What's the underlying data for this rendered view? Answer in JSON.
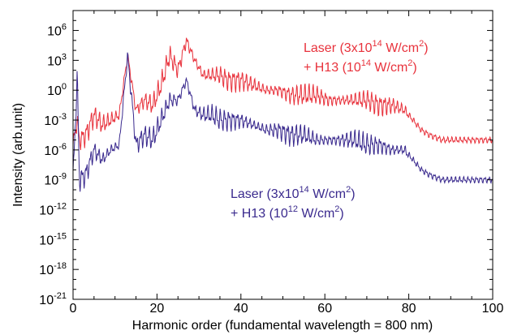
{
  "chart_data": {
    "type": "line",
    "xlabel": "Harmonic order (fundamental wavelength = 800 nm)",
    "ylabel": "Intensity (arb.unit)",
    "xlim": [
      0,
      100
    ],
    "ylim_log10": [
      -21,
      8
    ],
    "yscale": "log",
    "grid": false,
    "x_ticks": [
      0,
      20,
      40,
      60,
      80,
      100
    ],
    "x_tick_labels": [
      "0",
      "20",
      "40",
      "60",
      "80",
      "100"
    ],
    "y_ticks_exp": [
      -21,
      -18,
      -15,
      -12,
      -9,
      -6,
      -3,
      0,
      3,
      6
    ],
    "y_tick_labels": [
      {
        "base": "10",
        "exp": "-21"
      },
      {
        "base": "10",
        "exp": "-18"
      },
      {
        "base": "10",
        "exp": "-15"
      },
      {
        "base": "10",
        "exp": "-12"
      },
      {
        "base": "10",
        "exp": "-9"
      },
      {
        "base": "10",
        "exp": "-6"
      },
      {
        "base": "10",
        "exp": "-3"
      },
      {
        "base": "10",
        "exp": "0"
      },
      {
        "base": "10",
        "exp": "3"
      },
      {
        "base": "10",
        "exp": "6"
      }
    ],
    "series": [
      {
        "name": "Laser (3x10^14 W/cm^2) + H13 (10^14 W/cm^2)",
        "color": "#e8323c",
        "points": [
          [
            0,
            -5.5
          ],
          [
            1,
            -3
          ],
          [
            1.5,
            -5
          ],
          [
            3,
            -4.5
          ],
          [
            5,
            -2.5
          ],
          [
            7,
            -3.5
          ],
          [
            9,
            -3
          ],
          [
            11,
            -2.5
          ],
          [
            13,
            3.5
          ],
          [
            15,
            -2
          ],
          [
            17,
            -1
          ],
          [
            19,
            -1.5
          ],
          [
            21,
            0.5
          ],
          [
            23,
            3.5
          ],
          [
            25,
            2
          ],
          [
            27,
            5
          ],
          [
            29,
            3
          ],
          [
            31,
            1.5
          ],
          [
            33,
            1.5
          ],
          [
            35,
            1.5
          ],
          [
            37,
            1
          ],
          [
            40,
            1
          ],
          [
            43,
            0.5
          ],
          [
            46,
            0
          ],
          [
            49,
            0
          ],
          [
            52,
            -0.5
          ],
          [
            55,
            -0.5
          ],
          [
            58,
            -0.5
          ],
          [
            61,
            -1
          ],
          [
            64,
            -1
          ],
          [
            67,
            -1
          ],
          [
            70,
            -1
          ],
          [
            73,
            -1.5
          ],
          [
            76,
            -1.5
          ],
          [
            79,
            -2
          ],
          [
            81,
            -3
          ],
          [
            83,
            -4
          ],
          [
            85,
            -4.5
          ],
          [
            88,
            -5
          ],
          [
            92,
            -5
          ],
          [
            96,
            -5
          ],
          [
            100,
            -5
          ]
        ],
        "label_lines": [
          [
            {
              "t": "Laser (3x10"
            },
            {
              "t": "14",
              "sup": true
            },
            {
              "t": " W/cm"
            },
            {
              "t": "2",
              "sup": true
            },
            {
              "t": ")"
            }
          ],
          [
            {
              "t": "+ H13 (10"
            },
            {
              "t": "14",
              "sup": true
            },
            {
              "t": " W/cm"
            },
            {
              "t": "2",
              "sup": true
            },
            {
              "t": ")"
            }
          ]
        ]
      },
      {
        "name": "Laser (3x10^14 W/cm^2) + H13 (10^12 W/cm^2)",
        "color": "#3a2a8e",
        "points": [
          [
            0,
            -9
          ],
          [
            1,
            1.5
          ],
          [
            1.5,
            -9
          ],
          [
            3,
            -8.5
          ],
          [
            5,
            -6
          ],
          [
            7,
            -7
          ],
          [
            9,
            -6
          ],
          [
            11,
            -5.5
          ],
          [
            13,
            3.5
          ],
          [
            15,
            -5.5
          ],
          [
            17,
            -4.5
          ],
          [
            19,
            -5
          ],
          [
            21,
            -3
          ],
          [
            23,
            -1
          ],
          [
            25,
            -1
          ],
          [
            27,
            1
          ],
          [
            29,
            -2
          ],
          [
            31,
            -2.5
          ],
          [
            33,
            -2.5
          ],
          [
            35,
            -3
          ],
          [
            37,
            -3
          ],
          [
            40,
            -3
          ],
          [
            43,
            -3.5
          ],
          [
            46,
            -4
          ],
          [
            49,
            -4
          ],
          [
            52,
            -4.5
          ],
          [
            55,
            -4.5
          ],
          [
            58,
            -5
          ],
          [
            61,
            -5
          ],
          [
            64,
            -5
          ],
          [
            67,
            -5
          ],
          [
            70,
            -5.5
          ],
          [
            73,
            -5.5
          ],
          [
            76,
            -6
          ],
          [
            79,
            -6
          ],
          [
            81,
            -7
          ],
          [
            83,
            -8
          ],
          [
            85,
            -8.5
          ],
          [
            88,
            -9
          ],
          [
            92,
            -9
          ],
          [
            96,
            -9
          ],
          [
            100,
            -9
          ]
        ],
        "label_lines": [
          [
            {
              "t": "Laser (3x10"
            },
            {
              "t": "14",
              "sup": true
            },
            {
              "t": " W/cm"
            },
            {
              "t": "2",
              "sup": true
            },
            {
              "t": ")"
            }
          ],
          [
            {
              "t": "+ H13 (10"
            },
            {
              "t": "12",
              "sup": true
            },
            {
              "t": " W/cm"
            },
            {
              "t": "2",
              "sup": true
            },
            {
              "t": ")"
            }
          ]
        ]
      }
    ]
  }
}
